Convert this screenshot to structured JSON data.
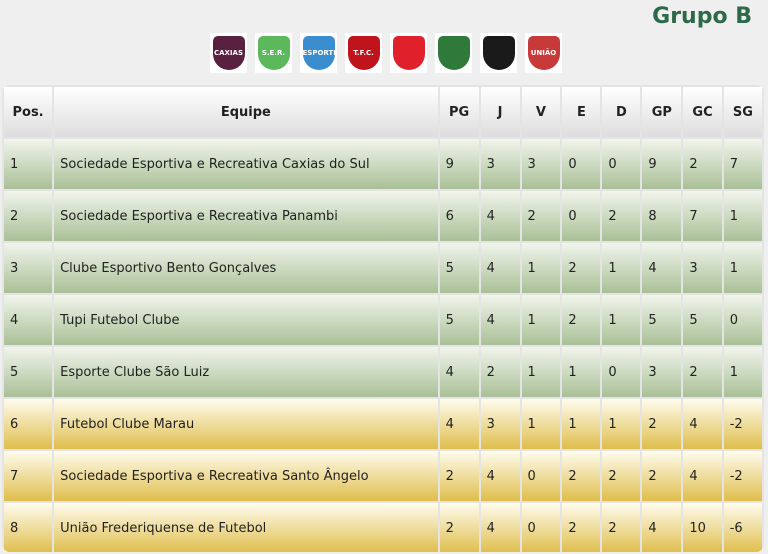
{
  "group_title": "Grupo B",
  "logos": [
    {
      "name": "caxias",
      "text": "CAXIAS",
      "color": "#5a2040"
    },
    {
      "name": "panambi",
      "text": "S.E.R.",
      "color": "#5bb85b"
    },
    {
      "name": "esportivo",
      "text": "ESPORTIVO",
      "color": "#3a8ed0"
    },
    {
      "name": "tupi",
      "text": "T.F.C.",
      "color": "#c0141c"
    },
    {
      "name": "sao-luiz",
      "text": "",
      "color": "#e0202a"
    },
    {
      "name": "marau",
      "text": "",
      "color": "#2f7a3a"
    },
    {
      "name": "santo-angelo",
      "text": "",
      "color": "#1a1a1a"
    },
    {
      "name": "uniao",
      "text": "UNIÃO",
      "color": "#c83a3a"
    }
  ],
  "columns": [
    "Pos.",
    "Equipe",
    "PG",
    "J",
    "V",
    "E",
    "D",
    "GP",
    "GC",
    "SG"
  ],
  "rows": [
    {
      "pos": "1",
      "team": "Sociedade Esportiva e Recreativa Caxias do Sul",
      "pg": "9",
      "j": "3",
      "v": "3",
      "e": "0",
      "d": "0",
      "gp": "9",
      "gc": "2",
      "sg": "7",
      "zone": "green"
    },
    {
      "pos": "2",
      "team": "Sociedade Esportiva e Recreativa Panambi",
      "pg": "6",
      "j": "4",
      "v": "2",
      "e": "0",
      "d": "2",
      "gp": "8",
      "gc": "7",
      "sg": "1",
      "zone": "green"
    },
    {
      "pos": "3",
      "team": "Clube Esportivo Bento Gonçalves",
      "pg": "5",
      "j": "4",
      "v": "1",
      "e": "2",
      "d": "1",
      "gp": "4",
      "gc": "3",
      "sg": "1",
      "zone": "green"
    },
    {
      "pos": "4",
      "team": "Tupi Futebol Clube",
      "pg": "5",
      "j": "4",
      "v": "1",
      "e": "2",
      "d": "1",
      "gp": "5",
      "gc": "5",
      "sg": "0",
      "zone": "green"
    },
    {
      "pos": "5",
      "team": "Esporte Clube São Luiz",
      "pg": "4",
      "j": "2",
      "v": "1",
      "e": "1",
      "d": "0",
      "gp": "3",
      "gc": "2",
      "sg": "1",
      "zone": "green"
    },
    {
      "pos": "6",
      "team": "Futebol Clube Marau",
      "pg": "4",
      "j": "3",
      "v": "1",
      "e": "1",
      "d": "1",
      "gp": "2",
      "gc": "4",
      "sg": "-2",
      "zone": "yellow"
    },
    {
      "pos": "7",
      "team": "Sociedade Esportiva e Recreativa Santo Ângelo",
      "pg": "2",
      "j": "4",
      "v": "0",
      "e": "2",
      "d": "2",
      "gp": "2",
      "gc": "4",
      "sg": "-2",
      "zone": "yellow"
    },
    {
      "pos": "8",
      "team": "União Frederiquense de Futebol",
      "pg": "2",
      "j": "4",
      "v": "0",
      "e": "2",
      "d": "2",
      "gp": "4",
      "gc": "10",
      "sg": "-6",
      "zone": "yellow"
    }
  ]
}
